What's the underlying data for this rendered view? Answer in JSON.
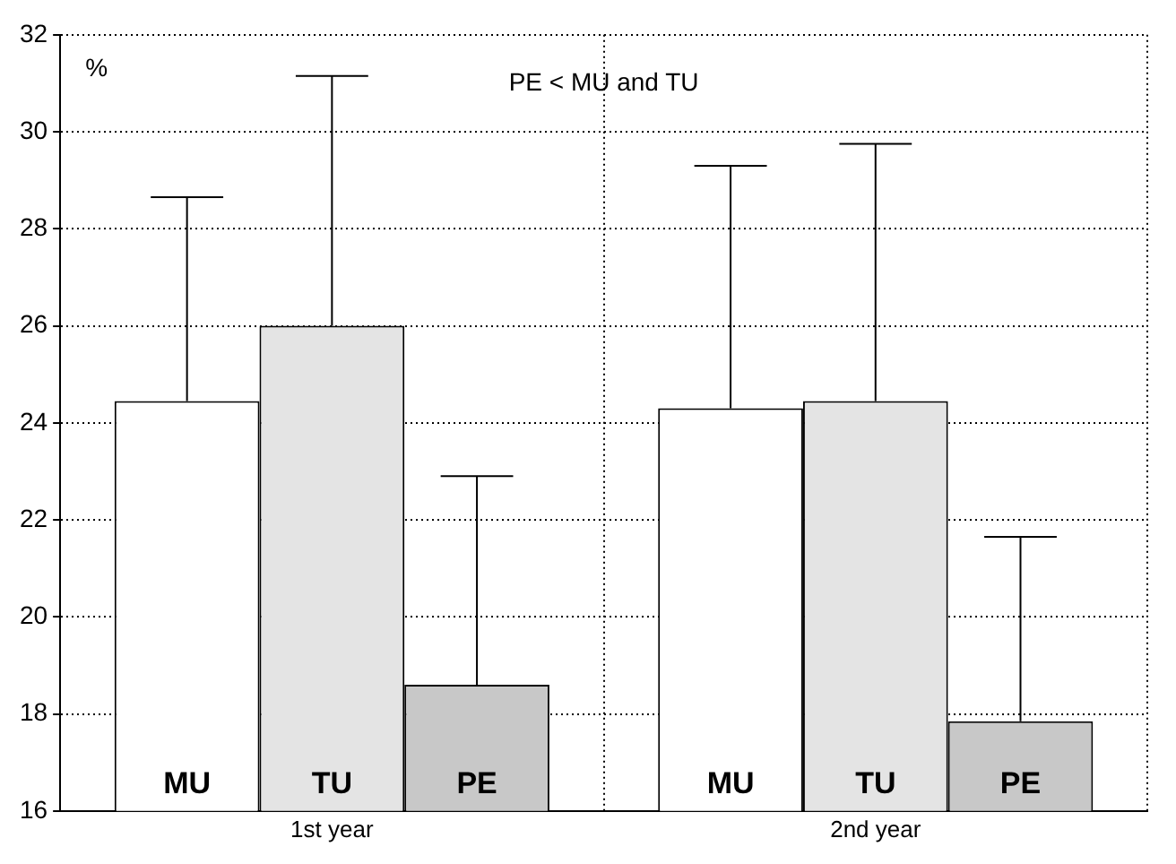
{
  "chart_data": {
    "type": "bar",
    "ylabel": "%",
    "categories": [
      "1st year",
      "2nd year"
    ],
    "series": [
      {
        "name": "MU",
        "color": "#ffffff",
        "values": [
          24.45,
          24.3
        ],
        "errors": [
          [
            24.45,
            28.65
          ],
          [
            24.3,
            29.3
          ]
        ]
      },
      {
        "name": "TU",
        "color": "#e4e4e4",
        "values": [
          26.0,
          24.45
        ],
        "errors": [
          [
            26.0,
            31.15
          ],
          [
            24.45,
            29.75
          ]
        ]
      },
      {
        "name": "PE",
        "color": "#c8c8c8",
        "values": [
          18.6,
          17.85
        ],
        "errors": [
          [
            18.6,
            22.9
          ],
          [
            17.85,
            21.65
          ]
        ]
      }
    ],
    "ylim": [
      16,
      32
    ],
    "yticks": [
      16,
      18,
      20,
      22,
      24,
      26,
      28,
      30,
      32
    ],
    "grid": true,
    "legend": false,
    "annotations": [
      "PE < MU and TU"
    ]
  }
}
